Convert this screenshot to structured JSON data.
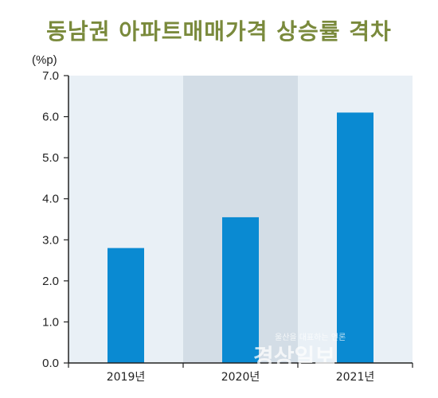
{
  "chart_data": {
    "type": "bar",
    "title": "동남권 아파트매매가격 상승률 격차",
    "unit": "(%p)",
    "categories": [
      "2019년",
      "2020년",
      "2021년"
    ],
    "values": [
      2.8,
      3.55,
      6.1
    ],
    "ylim": [
      0,
      7
    ],
    "yticks": [
      "0.0",
      "1.0",
      "2.0",
      "3.0",
      "4.0",
      "5.0",
      "6.0",
      "7.0"
    ],
    "highlight_category": "2020년",
    "grid": false,
    "colors": {
      "bar": "#0a8ad2",
      "plot_bg": "#e9f0f6",
      "highlight_bg": "#d3dde6",
      "title": "#7a8a3c",
      "axis": "#222222"
    }
  },
  "watermark": {
    "tagline": "울산을 대표하는 언론",
    "name": "경상일보"
  }
}
